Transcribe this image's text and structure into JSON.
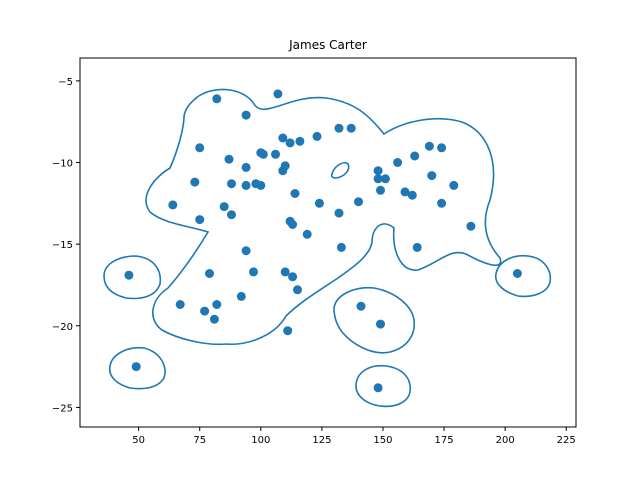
{
  "chart_data": {
    "type": "scatter",
    "title": "James Carter",
    "xlabel": "",
    "ylabel": "",
    "xlim": [
      26,
      229
    ],
    "ylim": [
      -26.2,
      -3.6
    ],
    "xticks": [
      50,
      75,
      100,
      125,
      150,
      175,
      200,
      225
    ],
    "yticks": [
      -5,
      -10,
      -15,
      -20,
      -25
    ],
    "grid": false,
    "colors": {
      "points": "#1f77b4",
      "contour": "#1f77b4",
      "axes": "#000000"
    },
    "series": [
      {
        "points": [
          [
            82,
            -6.1
          ],
          [
            107,
            -5.8
          ],
          [
            94,
            -7.1
          ],
          [
            109,
            -8.5
          ],
          [
            112,
            -8.8
          ],
          [
            116,
            -8.7
          ],
          [
            123,
            -8.4
          ],
          [
            132,
            -7.9
          ],
          [
            137,
            -7.9
          ],
          [
            75,
            -9.1
          ],
          [
            87,
            -9.8
          ],
          [
            100,
            -9.4
          ],
          [
            101,
            -9.5
          ],
          [
            106,
            -9.5
          ],
          [
            110,
            -10.2
          ],
          [
            109,
            -10.5
          ],
          [
            94,
            -10.3
          ],
          [
            73,
            -11.2
          ],
          [
            88,
            -11.3
          ],
          [
            94,
            -11.4
          ],
          [
            98,
            -11.3
          ],
          [
            100,
            -11.4
          ],
          [
            114,
            -11.9
          ],
          [
            64,
            -12.6
          ],
          [
            85,
            -12.7
          ],
          [
            88,
            -13.2
          ],
          [
            75,
            -13.5
          ],
          [
            124,
            -12.5
          ],
          [
            132,
            -13.1
          ],
          [
            140,
            -12.4
          ],
          [
            112,
            -13.6
          ],
          [
            113,
            -13.8
          ],
          [
            119,
            -14.4
          ],
          [
            94,
            -15.4
          ],
          [
            133,
            -15.2
          ],
          [
            148,
            -10.5
          ],
          [
            148,
            -11.0
          ],
          [
            151,
            -11.0
          ],
          [
            149,
            -11.7
          ],
          [
            156,
            -10.0
          ],
          [
            159,
            -11.8
          ],
          [
            162,
            -12.0
          ],
          [
            163,
            -9.6
          ],
          [
            169,
            -9.0
          ],
          [
            170,
            -10.8
          ],
          [
            174,
            -9.1
          ],
          [
            174,
            -12.5
          ],
          [
            179,
            -11.4
          ],
          [
            186,
            -13.9
          ],
          [
            164,
            -15.2
          ],
          [
            97,
            -16.7
          ],
          [
            79,
            -16.8
          ],
          [
            110,
            -16.7
          ],
          [
            113,
            -17.0
          ],
          [
            115,
            -17.8
          ],
          [
            67,
            -18.7
          ],
          [
            82,
            -18.7
          ],
          [
            77,
            -19.1
          ],
          [
            81,
            -19.6
          ],
          [
            92,
            -18.2
          ],
          [
            111,
            -20.3
          ],
          [
            141,
            -18.8
          ],
          [
            149,
            -19.9
          ],
          [
            46,
            -16.9
          ],
          [
            49,
            -22.5
          ],
          [
            148,
            -23.8
          ],
          [
            205,
            -16.8
          ]
        ]
      }
    ]
  }
}
